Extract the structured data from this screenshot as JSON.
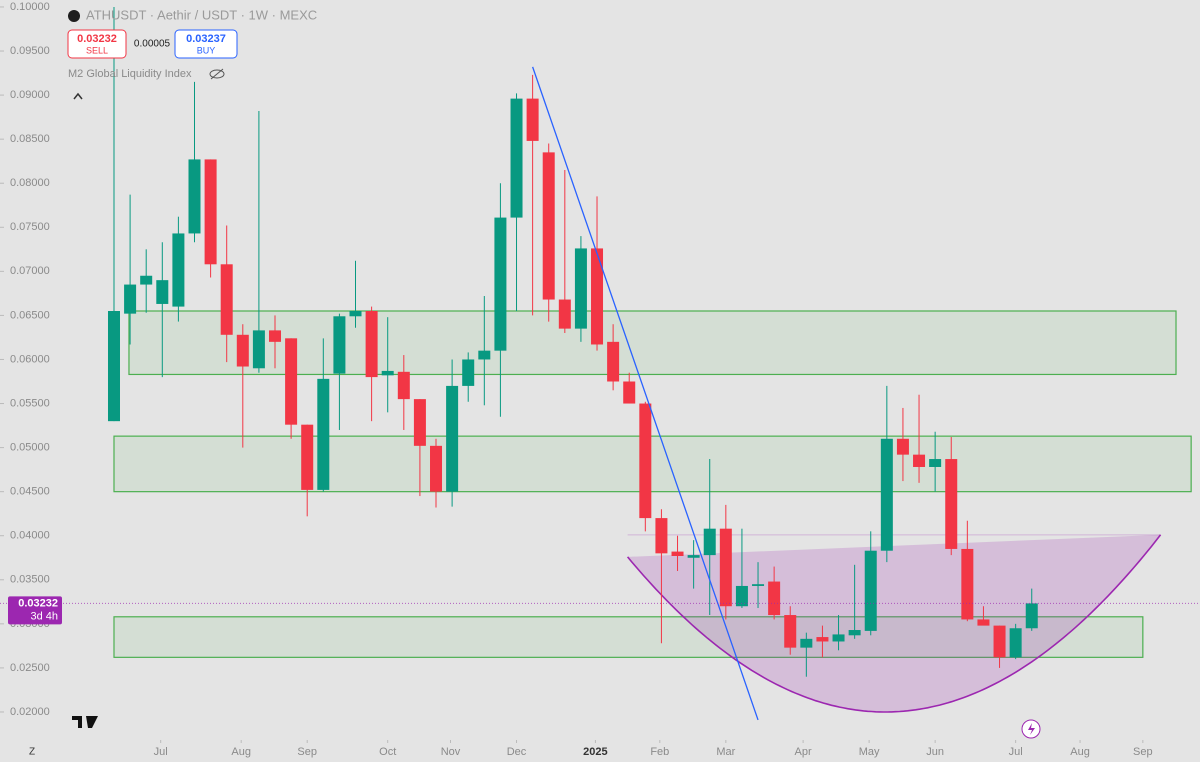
{
  "chart_data": {
    "type": "candlestick",
    "title": "ATHUSDT · Aethir / USDT · 1W · MEXC",
    "indicator": "M2 Global Liquidity Index",
    "sell": {
      "price": "0.03232",
      "label": "SELL"
    },
    "spread": "0.00005",
    "buy": {
      "price": "0.03237",
      "label": "BUY"
    },
    "last_price": {
      "value": 0.03232,
      "label": "0.03232",
      "countdown": "3d 4h"
    },
    "corner_label": "Z",
    "up_color": "#089981",
    "down_color": "#f23645",
    "open": [
      0.053,
      0.0652,
      0.0685,
      0.0663,
      0.066,
      0.0743,
      0.0827,
      0.0708,
      0.0628,
      0.059,
      0.0633,
      0.0624,
      0.0526,
      0.0452,
      0.0584,
      0.0649,
      0.0655,
      0.0582,
      0.0586,
      0.0555,
      0.0502,
      0.045,
      0.057,
      0.06,
      0.061,
      0.0761,
      0.0896,
      0.0835,
      0.0668,
      0.0635,
      0.0726,
      0.062,
      0.0575,
      0.055,
      0.042,
      0.0382,
      0.0375,
      0.0378,
      0.0408,
      0.032,
      0.0343,
      0.0348,
      0.031,
      0.0273,
      0.0285,
      0.028,
      0.0287,
      0.0292,
      0.0383,
      0.051,
      0.0492,
      0.0478,
      0.0487,
      0.0385,
      0.0305,
      0.0298,
      0.0262,
      0.0295
    ],
    "high": [
      0.1,
      0.0787,
      0.0725,
      0.0733,
      0.0762,
      0.0915,
      0.0827,
      0.0752,
      0.064,
      0.0882,
      0.065,
      0.0624,
      0.0526,
      0.0624,
      0.0652,
      0.0712,
      0.066,
      0.0648,
      0.0605,
      0.0555,
      0.051,
      0.06,
      0.0608,
      0.0672,
      0.08,
      0.0902,
      0.0923,
      0.0845,
      0.0815,
      0.074,
      0.0785,
      0.064,
      0.0585,
      0.0552,
      0.043,
      0.04,
      0.0395,
      0.0487,
      0.0435,
      0.0408,
      0.037,
      0.0365,
      0.032,
      0.029,
      0.0298,
      0.031,
      0.0367,
      0.0405,
      0.057,
      0.0545,
      0.056,
      0.0518,
      0.0512,
      0.0417,
      0.032,
      0.0298,
      0.03,
      0.034
    ],
    "low": [
      0.053,
      0.0617,
      0.0653,
      0.058,
      0.0643,
      0.0733,
      0.0693,
      0.0597,
      0.05,
      0.0585,
      0.059,
      0.051,
      0.0422,
      0.045,
      0.052,
      0.0636,
      0.053,
      0.054,
      0.052,
      0.0445,
      0.0432,
      0.0433,
      0.0552,
      0.0548,
      0.0535,
      0.0655,
      0.065,
      0.0643,
      0.063,
      0.062,
      0.061,
      0.0565,
      0.055,
      0.0405,
      0.0278,
      0.036,
      0.034,
      0.031,
      0.0305,
      0.0318,
      0.0318,
      0.0305,
      0.0265,
      0.024,
      0.0262,
      0.027,
      0.0283,
      0.0287,
      0.037,
      0.0462,
      0.046,
      0.045,
      0.0378,
      0.0303,
      0.03,
      0.025,
      0.026,
      0.0292
    ],
    "close": [
      0.0655,
      0.0685,
      0.0695,
      0.069,
      0.0743,
      0.0827,
      0.0708,
      0.0628,
      0.0592,
      0.0633,
      0.062,
      0.0526,
      0.0452,
      0.0578,
      0.0649,
      0.0655,
      0.058,
      0.0587,
      0.0555,
      0.0502,
      0.045,
      0.057,
      0.06,
      0.061,
      0.0761,
      0.0896,
      0.0848,
      0.0668,
      0.0635,
      0.0726,
      0.0617,
      0.0575,
      0.055,
      0.042,
      0.038,
      0.0377,
      0.0378,
      0.0408,
      0.032,
      0.0343,
      0.0345,
      0.031,
      0.0273,
      0.0283,
      0.028,
      0.0288,
      0.0293,
      0.0383,
      0.051,
      0.0492,
      0.0478,
      0.0487,
      0.0385,
      0.0305,
      0.0298,
      0.0262,
      0.0295,
      0.03232
    ],
    "xlim": [
      -7.08,
      67.45
    ],
    "ylim": [
      0.01682,
      0.10079
    ],
    "xticks": [
      {
        "value": 2.9,
        "label": "Jul"
      },
      {
        "value": 7.9,
        "label": "Aug"
      },
      {
        "value": 12,
        "label": "Sep"
      },
      {
        "value": 17,
        "label": "Oct"
      },
      {
        "value": 20.9,
        "label": "Nov"
      },
      {
        "value": 25,
        "label": "Dec"
      },
      {
        "value": 29.9,
        "label": "2025"
      },
      {
        "value": 33.9,
        "label": "Feb"
      },
      {
        "value": 38,
        "label": "Mar"
      },
      {
        "value": 42.8,
        "label": "Apr"
      },
      {
        "value": 46.9,
        "label": "May"
      },
      {
        "value": 51,
        "label": "Jun"
      },
      {
        "value": 56,
        "label": "Jul"
      },
      {
        "value": 60,
        "label": "Aug"
      },
      {
        "value": 63.9,
        "label": "Sep"
      }
    ],
    "yticks": [
      {
        "value": 0.02,
        "label": "0.02000"
      },
      {
        "value": 0.025,
        "label": "0.02500"
      },
      {
        "value": 0.03,
        "label": "0.03000"
      },
      {
        "value": 0.035,
        "label": "0.03500"
      },
      {
        "value": 0.04,
        "label": "0.04000"
      },
      {
        "value": 0.045,
        "label": "0.04500"
      },
      {
        "value": 0.05,
        "label": "0.05000"
      },
      {
        "value": 0.055,
        "label": "0.05500"
      },
      {
        "value": 0.06,
        "label": "0.06000"
      },
      {
        "value": 0.065,
        "label": "0.06500"
      },
      {
        "value": 0.07,
        "label": "0.07000"
      },
      {
        "value": 0.075,
        "label": "0.07500"
      },
      {
        "value": 0.08,
        "label": "0.08000"
      },
      {
        "value": 0.085,
        "label": "0.08500"
      },
      {
        "value": 0.09,
        "label": "0.09000"
      },
      {
        "value": 0.095,
        "label": "0.09500"
      },
      {
        "value": 0.1,
        "label": "0.10000"
      }
    ],
    "zones": [
      {
        "xlim": [
          0.93,
          65.96
        ],
        "ylim": [
          0.0583,
          0.0655
        ],
        "color": "#4caf50"
      },
      {
        "xlim": [
          0,
          66.9
        ],
        "ylim": [
          0.045,
          0.0513
        ],
        "color": "#4caf50"
      },
      {
        "xlim": [
          0,
          63.9
        ],
        "ylim": [
          0.0262,
          0.0308
        ],
        "color": "#4caf50"
      }
    ],
    "arc": {
      "xlim": [
        31.9,
        65
      ],
      "ylim": [
        0.02,
        0.0401
      ],
      "bottom_x": 47.9,
      "color": "#9c27b0"
    },
    "trendline": {
      "x": [
        26,
        40
      ],
      "y": [
        0.0932,
        0.0191
      ],
      "color": "#2962ff"
    }
  }
}
